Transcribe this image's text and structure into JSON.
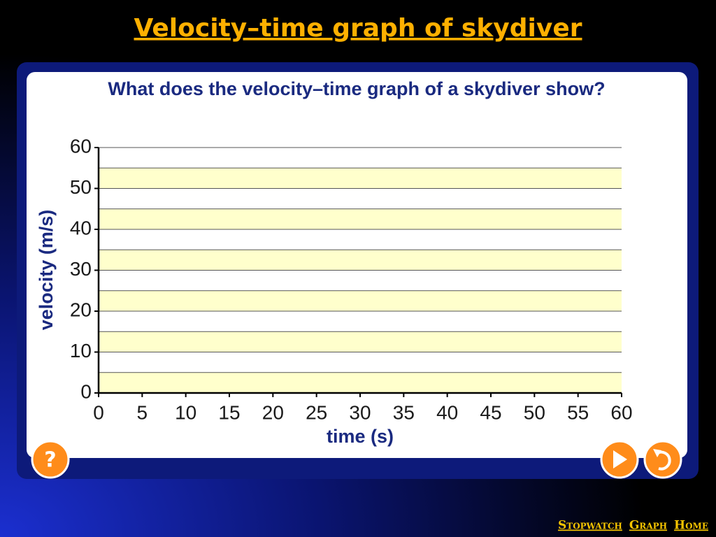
{
  "slide_title": "Velocity–time graph of skydiver",
  "nav": [
    "Stopwatch",
    "Graph",
    "Home"
  ],
  "help_button": "?",
  "chart_data": {
    "type": "line",
    "title": "What does the velocity–time graph of a skydiver show?",
    "xlabel": "time (s)",
    "ylabel": "velocity (m/s)",
    "xlim": [
      0,
      60
    ],
    "xticks": [
      0,
      5,
      10,
      15,
      20,
      25,
      30,
      35,
      40,
      45,
      50,
      55,
      60
    ],
    "ylim": [
      0,
      60
    ],
    "yticks": [
      0,
      10,
      20,
      30,
      40,
      50,
      60
    ],
    "grid": true,
    "band_color": "#ffffcc",
    "series": []
  }
}
